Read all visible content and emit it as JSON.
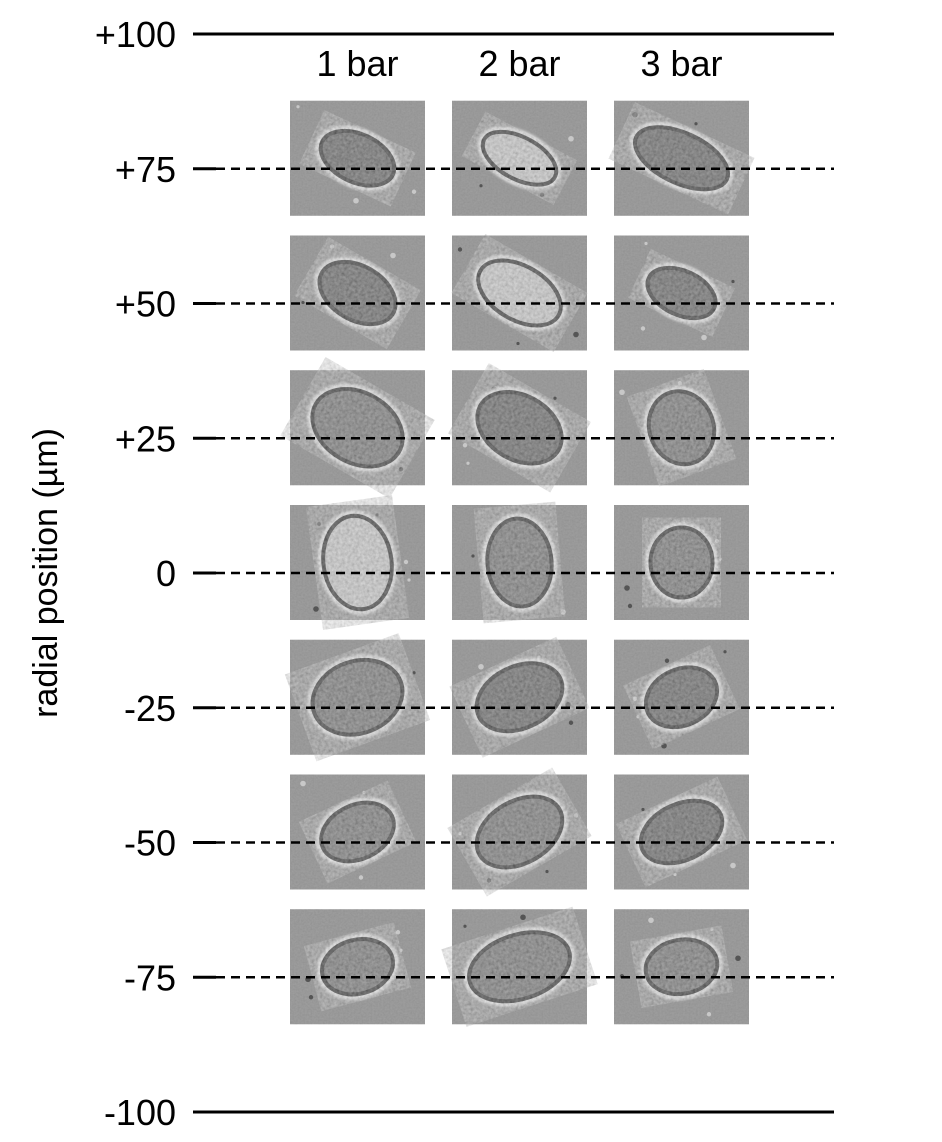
{
  "figure": {
    "y_axis_label": "radial position (µm)",
    "columns": [
      "1 bar",
      "2 bar",
      "3 bar"
    ],
    "wall_positions": [
      100,
      -100
    ],
    "wall_labels": [
      "+100",
      "-100"
    ],
    "rows": [
      {
        "position": 75,
        "label": "+75",
        "cells": [
          {
            "w": 78,
            "h": 48,
            "angle": 25,
            "shade": "dark"
          },
          {
            "w": 80,
            "h": 42,
            "angle": 28,
            "shade": "bright"
          },
          {
            "w": 100,
            "h": 50,
            "angle": 25,
            "shade": "dark"
          }
        ]
      },
      {
        "position": 50,
        "label": "+50",
        "cells": [
          {
            "w": 82,
            "h": 54,
            "angle": 30,
            "shade": "dark"
          },
          {
            "w": 90,
            "h": 54,
            "angle": 30,
            "shade": "bright"
          },
          {
            "w": 72,
            "h": 44,
            "angle": 25,
            "shade": "dark"
          }
        ]
      },
      {
        "position": 25,
        "label": "+25",
        "cells": [
          {
            "w": 96,
            "h": 70,
            "angle": 30,
            "shade": "textured"
          },
          {
            "w": 90,
            "h": 64,
            "angle": 30,
            "shade": "dark"
          },
          {
            "w": 64,
            "h": 74,
            "angle": -20,
            "shade": "textured"
          }
        ]
      },
      {
        "position": 0,
        "label": "0",
        "cells": [
          {
            "w": 68,
            "h": 94,
            "angle": -8,
            "shade": "bright"
          },
          {
            "w": 64,
            "h": 88,
            "angle": -5,
            "shade": "textured"
          },
          {
            "w": 62,
            "h": 70,
            "angle": 0,
            "shade": "textured"
          }
        ]
      },
      {
        "position": -25,
        "label": "-25",
        "cells": [
          {
            "w": 92,
            "h": 72,
            "angle": -20,
            "shade": "textured"
          },
          {
            "w": 90,
            "h": 62,
            "angle": -25,
            "shade": "dark"
          },
          {
            "w": 74,
            "h": 56,
            "angle": -25,
            "shade": "dark"
          }
        ]
      },
      {
        "position": -50,
        "label": "-50",
        "cells": [
          {
            "w": 76,
            "h": 54,
            "angle": -25,
            "shade": "textured"
          },
          {
            "w": 92,
            "h": 62,
            "angle": -30,
            "shade": "textured"
          },
          {
            "w": 86,
            "h": 56,
            "angle": -25,
            "shade": "dark"
          }
        ]
      },
      {
        "position": -75,
        "label": "-75",
        "cells": [
          {
            "w": 72,
            "h": 54,
            "angle": -15,
            "shade": "textured"
          },
          {
            "w": 104,
            "h": 64,
            "angle": -18,
            "shade": "textured"
          },
          {
            "w": 72,
            "h": 54,
            "angle": -10,
            "shade": "textured"
          }
        ]
      }
    ]
  }
}
